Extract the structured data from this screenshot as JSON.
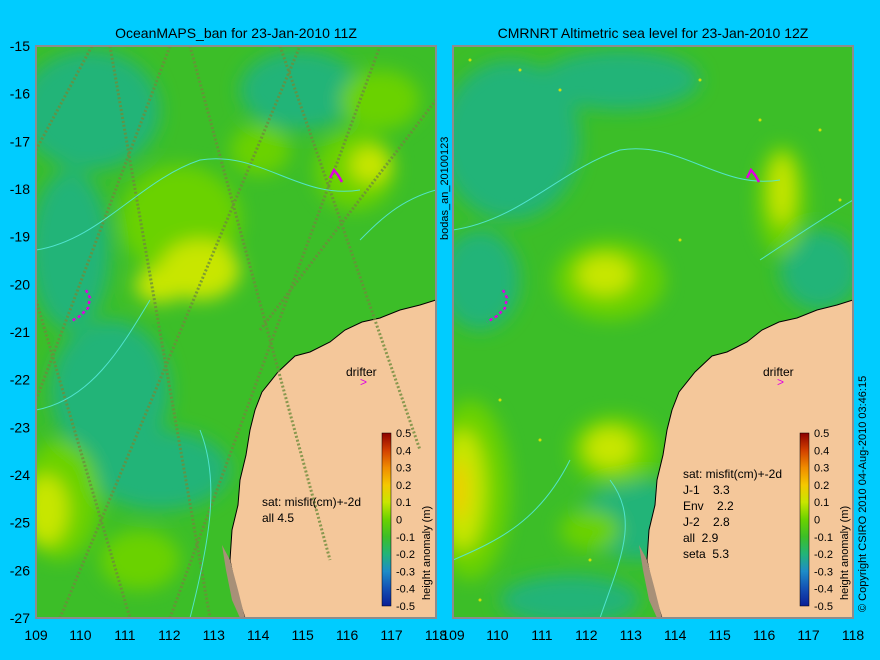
{
  "left_panel": {
    "title": "OceanMAPS_ban for 23-Jan-2010 11Z",
    "stats": [
      "sat: misfit(cm)+-2d",
      "all  4.5"
    ],
    "drifter_label": "drifter"
  },
  "right_panel": {
    "title": "CMRNRT Altimetric sea level  for 23-Jan-2010 12Z",
    "stats": [
      "sat: misfit(cm)+-2d",
      "J-1    3.3",
      "Env    2.2",
      "J-2    2.8",
      "all  2.9",
      "seta  5.3"
    ],
    "drifter_label": "drifter"
  },
  "vertical_label": "bodas_an_20100123",
  "copyright": "© Copyright CSIRO 2010   04-Aug-2010 03:46:15",
  "axes": {
    "x_ticks": [
      "109",
      "110",
      "111",
      "112",
      "113",
      "114",
      "115",
      "116",
      "117",
      "118"
    ],
    "y_ticks": [
      "-15",
      "-16",
      "-17",
      "-18",
      "-19",
      "-20",
      "-21",
      "-22",
      "-23",
      "-24",
      "-25",
      "-26",
      "-27"
    ]
  },
  "colorbar": {
    "label": "height anomaly (m)",
    "ticks": [
      "0.5",
      "0.4",
      "0.3",
      "0.2",
      "0.1",
      "0",
      "-0.1",
      "-0.2",
      "-0.3",
      "-0.4",
      "-0.5"
    ],
    "colors": [
      "#8b0000",
      "#d24000",
      "#f08c00",
      "#f5c800",
      "#c8e600",
      "#6ad200",
      "#3cbe28",
      "#22b478",
      "#1e8cc8",
      "#1450b4",
      "#0a1e96"
    ]
  },
  "colors": {
    "background": "#00ccff",
    "land": "#f4c79a",
    "ocean": "#3cbe28",
    "drifter_track": "#e000e0"
  }
}
